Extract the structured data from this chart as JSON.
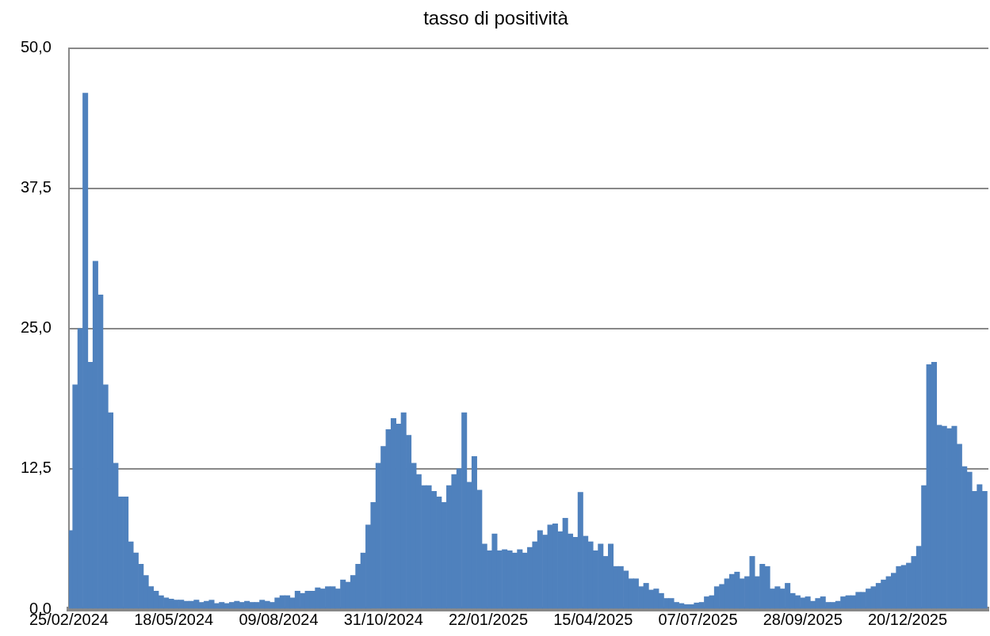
{
  "chart_data": {
    "type": "bar",
    "title": "tasso di positività",
    "x": [
      "2024-02-26",
      "2024-03-01",
      "2024-03-05",
      "2024-03-09",
      "2024-03-13",
      "2024-03-17",
      "2024-03-21",
      "2024-03-25",
      "2024-03-29",
      "2024-04-02",
      "2024-04-06",
      "2024-04-10",
      "2024-04-14",
      "2024-04-18",
      "2024-04-22",
      "2024-04-26",
      "2024-04-30",
      "2024-05-04",
      "2024-05-08",
      "2024-05-12",
      "2024-05-16",
      "2024-05-20",
      "2024-05-24",
      "2024-05-28",
      "2024-06-01",
      "2024-06-05",
      "2024-06-09",
      "2024-06-13",
      "2024-06-17",
      "2024-06-21",
      "2024-06-25",
      "2024-06-29",
      "2024-07-03",
      "2024-07-07",
      "2024-07-11",
      "2024-07-15",
      "2024-07-19",
      "2024-07-23",
      "2024-07-27",
      "2024-07-31",
      "2024-08-04",
      "2024-08-08",
      "2024-08-12",
      "2024-08-16",
      "2024-08-20",
      "2024-08-24",
      "2024-08-28",
      "2024-09-01",
      "2024-09-05",
      "2024-09-09",
      "2024-09-13",
      "2024-09-17",
      "2024-09-21",
      "2024-09-25",
      "2024-09-29",
      "2024-10-03",
      "2024-10-07",
      "2024-10-11",
      "2024-10-15",
      "2024-10-19",
      "2024-10-23",
      "2024-10-27",
      "2024-10-31",
      "2024-11-04",
      "2024-11-08",
      "2024-11-12",
      "2024-11-16",
      "2024-11-20",
      "2024-11-24",
      "2024-11-28",
      "2024-12-02",
      "2024-12-06",
      "2024-12-10",
      "2024-12-14",
      "2024-12-18",
      "2024-12-22",
      "2024-12-26",
      "2024-12-30",
      "2025-01-03",
      "2025-01-07",
      "2025-01-11",
      "2025-01-15",
      "2025-01-19",
      "2025-01-23",
      "2025-01-27",
      "2025-01-31",
      "2025-02-04",
      "2025-02-08",
      "2025-02-12",
      "2025-02-16",
      "2025-02-20",
      "2025-02-24",
      "2025-02-28",
      "2025-03-04",
      "2025-03-08",
      "2025-03-12",
      "2025-03-16",
      "2025-03-20",
      "2025-03-24",
      "2025-03-28",
      "2025-04-01",
      "2025-04-05",
      "2025-04-09",
      "2025-04-13",
      "2025-04-17",
      "2025-04-21",
      "2025-04-25",
      "2025-04-29",
      "2025-05-03",
      "2025-05-07",
      "2025-05-11",
      "2025-05-15",
      "2025-05-19",
      "2025-05-23",
      "2025-05-27",
      "2025-05-31",
      "2025-06-04",
      "2025-06-08",
      "2025-06-12",
      "2025-06-16",
      "2025-06-20",
      "2025-06-24",
      "2025-06-28",
      "2025-07-02",
      "2025-07-06",
      "2025-07-10",
      "2025-07-14",
      "2025-07-18",
      "2025-07-22",
      "2025-07-26",
      "2025-07-30",
      "2025-08-03",
      "2025-08-07",
      "2025-08-11",
      "2025-08-15",
      "2025-08-19",
      "2025-08-23",
      "2025-08-27",
      "2025-08-31",
      "2025-09-04",
      "2025-09-08",
      "2025-09-12",
      "2025-09-16",
      "2025-09-20",
      "2025-09-24",
      "2025-09-28",
      "2025-10-02",
      "2025-10-06",
      "2025-10-10",
      "2025-10-14",
      "2025-10-18",
      "2025-10-22",
      "2025-10-26",
      "2025-10-30",
      "2025-11-03",
      "2025-11-07",
      "2025-11-11",
      "2025-11-15",
      "2025-11-19",
      "2025-11-23",
      "2025-11-27",
      "2025-12-01",
      "2025-12-05",
      "2025-12-09",
      "2025-12-13",
      "2025-12-17",
      "2025-12-21",
      "2025-12-25",
      "2025-12-29",
      "2026-01-02",
      "2026-01-06",
      "2026-01-10",
      "2026-01-14",
      "2026-01-18",
      "2026-01-22",
      "2026-01-26",
      "2026-01-30",
      "2026-02-03",
      "2026-02-07",
      "2026-02-11",
      "2026-02-15",
      "2026-02-19"
    ],
    "values": [
      7,
      20,
      25,
      46,
      22,
      31,
      28,
      20,
      17.5,
      13,
      10,
      10,
      6,
      5,
      4,
      3,
      2,
      1.6,
      1.2,
      1,
      0.9,
      0.8,
      0.8,
      0.7,
      0.7,
      0.8,
      0.6,
      0.7,
      0.8,
      0.5,
      0.6,
      0.5,
      0.6,
      0.7,
      0.6,
      0.7,
      0.6,
      0.6,
      0.8,
      0.7,
      0.6,
      1,
      1.2,
      1.2,
      1,
      1.6,
      1.4,
      1.6,
      1.6,
      1.9,
      1.8,
      2,
      2,
      1.8,
      2.6,
      2.4,
      3,
      4,
      5,
      7.5,
      9.5,
      13,
      14.5,
      16,
      17,
      16.5,
      17.5,
      15.5,
      13,
      12,
      11,
      11,
      10.5,
      10,
      9.5,
      11,
      12,
      12.5,
      17.5,
      11.3,
      13.6,
      10.6,
      5.8,
      5.2,
      6.7,
      5.2,
      5.3,
      5.2,
      5,
      5.3,
      5,
      5.5,
      6,
      7,
      6.6,
      7.5,
      7.6,
      6.9,
      8.1,
      6.7,
      6.4,
      10.4,
      6.5,
      6,
      5.2,
      5.8,
      4.7,
      5.8,
      3.8,
      3.8,
      3.4,
      2.7,
      2.7,
      2,
      2.3,
      1.7,
      1.8,
      1.4,
      0.95,
      0.95,
      0.6,
      0.5,
      0.4,
      0.4,
      0.55,
      0.6,
      1.1,
      1.2,
      2,
      2.2,
      2.7,
      3.1,
      3.3,
      2.7,
      2.9,
      4.7,
      2.9,
      4,
      3.8,
      1.8,
      2,
      1.8,
      2.3,
      1.4,
      1.2,
      1,
      1.1,
      0.7,
      0.95,
      1.1,
      0.6,
      0.6,
      0.7,
      1.1,
      1.2,
      1.2,
      1.5,
      1.5,
      1.8,
      2,
      2.3,
      2.6,
      2.9,
      3.2,
      3.8,
      3.9,
      4.1,
      4.7,
      5.6,
      11,
      21.8,
      22,
      16.4,
      16.3,
      16.1,
      16.3,
      14.7,
      12.7,
      12.2,
      10.5,
      11.1,
      10.5
    ],
    "color": "#4f81bd",
    "xlim": [
      "2024-02-25",
      "2026-02-22"
    ],
    "xticks": [
      {
        "value": "2024-02-25",
        "label": "25/02/2024"
      },
      {
        "value": "2024-05-18",
        "label": "18/05/2024"
      },
      {
        "value": "2024-08-09",
        "label": "09/08/2024"
      },
      {
        "value": "2024-10-31",
        "label": "31/10/2024"
      },
      {
        "value": "2025-01-22",
        "label": "22/01/2025"
      },
      {
        "value": "2025-04-15",
        "label": "15/04/2025"
      },
      {
        "value": "2025-07-07",
        "label": "07/07/2025"
      },
      {
        "value": "2025-09-28",
        "label": "28/09/2025"
      },
      {
        "value": "2025-12-20",
        "label": "20/12/2025"
      }
    ],
    "ylim": [
      0,
      50
    ],
    "yticks": [
      {
        "value": 0,
        "label": "0,0"
      },
      {
        "value": 12.5,
        "label": "12,5"
      },
      {
        "value": 25,
        "label": "25,0"
      },
      {
        "value": 37.5,
        "label": "37,5"
      },
      {
        "value": 50,
        "label": "50,0"
      }
    ],
    "grid": "y",
    "legend": false
  }
}
